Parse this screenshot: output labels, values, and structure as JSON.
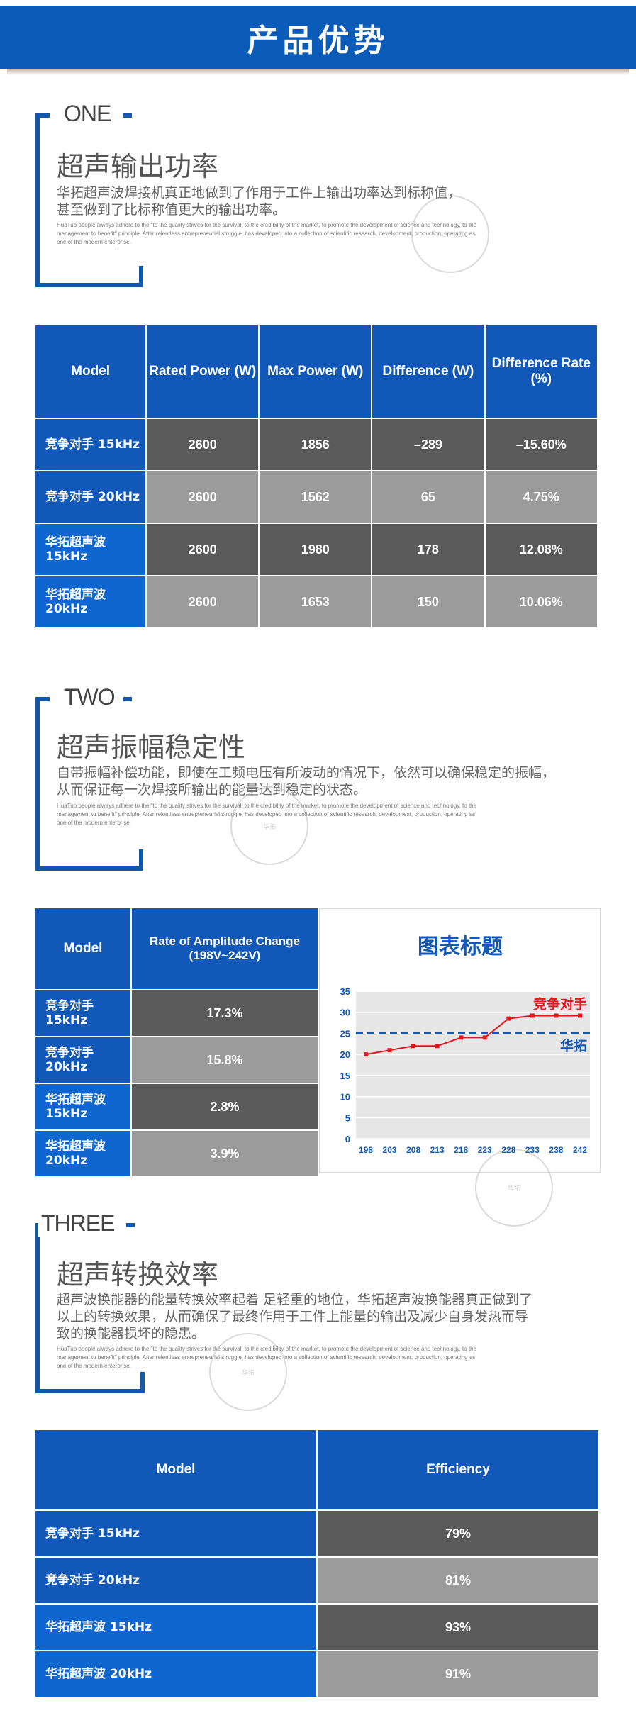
{
  "banner": {
    "title": "产品优势"
  },
  "sections": [
    {
      "num": "ONE",
      "title": "超声输出功率",
      "desc": [
        "华拓超声波焊接机真正地做到了作用于工件上输出功率达到标称值，",
        "甚至做到了比标称值更大的输出功率。"
      ],
      "en": [
        "HuaTuo people always adhere to the \"to the quality strives for the survival, to the credibility of the market, to promote the development of science and technology, to the",
        "management to benefit\" principle. After relentless entrepreneurial struggle, has developed into a collection of scientific research, development, production, operating as",
        "one of the modern enterprise."
      ]
    },
    {
      "num": "TWO",
      "title": "超声振幅稳定性",
      "desc": [
        "自带振幅补偿功能，即使在工频电压有所波动的情况下，依然可以确保稳定的振幅，",
        "从而保证每一次焊接所输出的能量达到稳定的状态。"
      ],
      "en": [
        "HuaTuo people always adhere to the \"to the quality strives for the survival, to the credibility of the market, to promote the development of science and technology, to the",
        "management to benefit\" principle. After relentless entrepreneurial struggle, has developed into a collection of scientific research, development, production, operating as",
        "one of the modern enterprise."
      ]
    },
    {
      "num": "THREE",
      "title": "超声转换效率",
      "desc": [
        "超声波换能器的能量转换效率起着 足轻重的地位，华拓超声波换能器真正做到了",
        "以上的转换效果，从而确保了最终作用于工件上能量的输出及减少自身发热而导",
        "致的换能器损坏的隐患。"
      ],
      "en": [
        "HuaTuo people always adhere to the \"to the quality strives for the survival, to the credibility of the market, to promote the development of science and technology, to the",
        "management to benefit\" principle. After relentless entrepreneurial struggle, has developed into a collection of scientific research, development, production, operating as",
        "one of the modern enterprise."
      ]
    }
  ],
  "watermark": {
    "cn": "华拓",
    "brand": "HUATUO"
  },
  "table1": {
    "headers": [
      "Model",
      "Rated Power (W)",
      "Max Power (W)",
      "Difference (W)",
      "Difference Rate (%)"
    ],
    "rows": [
      [
        "竞争对手 15kHz",
        "2600",
        "1856",
        "–289",
        "–15.60%"
      ],
      [
        "竞争对手 20kHz",
        "2600",
        "1562",
        "65",
        "4.75%"
      ],
      [
        "华拓超声波 15kHz",
        "2600",
        "1980",
        "178",
        "12.08%"
      ],
      [
        "华拓超声波 20kHz",
        "2600",
        "1653",
        "150",
        "10.06%"
      ]
    ]
  },
  "table2": {
    "headers": [
      "Model",
      "Rate of Amplitude Change (198V~242V)"
    ],
    "rows": [
      [
        "竞争对手 15kHz",
        "17.3%"
      ],
      [
        "竞争对手 20kHz",
        "15.8%"
      ],
      [
        "华拓超声波 15kHz",
        "2.8%"
      ],
      [
        "华拓超声波 20kHz",
        "3.9%"
      ]
    ]
  },
  "table3": {
    "headers": [
      "Model",
      "Efficiency"
    ],
    "rows": [
      [
        "竞争对手 15kHz",
        "79%"
      ],
      [
        "竞争对手 20kHz",
        "81%"
      ],
      [
        "华拓超声波 15kHz",
        "93%"
      ],
      [
        "华拓超声波 20kHz",
        "91%"
      ]
    ]
  },
  "chart_data": {
    "type": "line",
    "title": "图表标题",
    "x": [
      "198",
      "203",
      "208",
      "213",
      "218",
      "223",
      "228",
      "233",
      "238",
      "242"
    ],
    "yticks": [
      "0",
      "5",
      "10",
      "15",
      "20",
      "25",
      "30",
      "35"
    ],
    "ylim": [
      0,
      35
    ],
    "grid": true,
    "series": [
      {
        "name": "竞争对手",
        "type": "line",
        "color": "#e8141c",
        "values": [
          20,
          21,
          22,
          22,
          24,
          24,
          28.5,
          29.2,
          29.2,
          29.2
        ]
      },
      {
        "name": "华拓",
        "type": "dashed-line",
        "color": "#1158b8",
        "values": [
          25,
          25,
          25,
          25,
          25,
          25,
          25,
          25,
          25,
          25
        ]
      }
    ]
  },
  "colors": {
    "primary": "#0a5cb8",
    "dark_cell": "#5a5a5a",
    "light_cell": "#9b9b9b",
    "red": "#e8141c"
  }
}
